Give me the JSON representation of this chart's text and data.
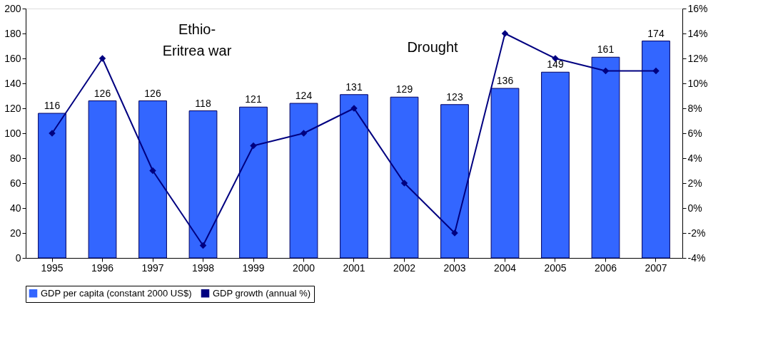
{
  "chart_data": {
    "type": "bar",
    "categories": [
      "1995",
      "1996",
      "1997",
      "1998",
      "1999",
      "2000",
      "2001",
      "2002",
      "2003",
      "2004",
      "2005",
      "2006",
      "2007"
    ],
    "series": [
      {
        "name": "GDP per capita (constant 2000 US$)",
        "color": "#3366ff",
        "values": [
          116,
          126,
          126,
          118,
          121,
          124,
          131,
          129,
          123,
          136,
          149,
          161,
          174
        ],
        "value_labels": [
          "116",
          "126",
          "126",
          "118",
          "121",
          "124",
          "131",
          "129",
          "123",
          "136",
          "149",
          "161",
          "174"
        ]
      },
      {
        "name": "GDP growth (annual %)",
        "type": "line",
        "axis": "y2",
        "color": "#000080",
        "marker": "diamond",
        "values": [
          6,
          12,
          3,
          -3,
          5,
          6,
          8,
          2,
          -2,
          14,
          12,
          11,
          11
        ]
      }
    ],
    "ylim": [
      0,
      200
    ],
    "yticks": [
      0,
      20,
      40,
      60,
      80,
      100,
      120,
      140,
      160,
      180,
      200
    ],
    "y2lim": [
      -4,
      16
    ],
    "y2ticks": [
      {
        "value": -4,
        "label": "-4%"
      },
      {
        "value": -2,
        "label": "-2%"
      },
      {
        "value": 0,
        "label": "0%"
      },
      {
        "value": 2,
        "label": "2%"
      },
      {
        "value": 4,
        "label": "4%"
      },
      {
        "value": 6,
        "label": "6%"
      },
      {
        "value": 8,
        "label": "8%"
      },
      {
        "value": 10,
        "label": "10%"
      },
      {
        "value": 12,
        "label": "12%"
      },
      {
        "value": 14,
        "label": "14%"
      },
      {
        "value": 16,
        "label": "16%"
      }
    ],
    "annotations": [
      "Ethio-\nEritrea war",
      "Drought"
    ],
    "grid": false,
    "legend": "bottom"
  }
}
